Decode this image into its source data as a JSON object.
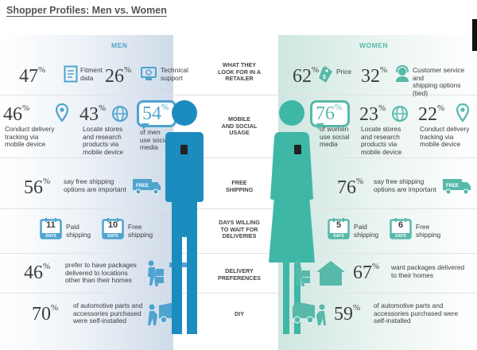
{
  "title": "Shopper Profiles: Men vs. Women",
  "headers": {
    "men": "MEN",
    "women": "WOMEN"
  },
  "center": {
    "retailer": "WHAT THEY\nLOOK FOR IN A\nRETAILER",
    "mobile": "MOBILE\nAND SOCIAL\nUSAGE",
    "shipping": "FREE\nSHIPPING",
    "days": "DAYS WILLING\nTO WAIT FOR\nDELIVERIES",
    "delivery": "DELIVERY\nPREFERENCES",
    "diy": "DIY"
  },
  "men": {
    "fitment": {
      "pct": "47",
      "label": "Fitment\ndata"
    },
    "technical": {
      "pct": "26",
      "label": "Technical\nsupport"
    },
    "tracking": {
      "pct": "46",
      "label": "Conduct delivery\ntracking via\nmobile device"
    },
    "locate": {
      "pct": "43",
      "label": "Locate stores\nand research\nproducts via\nmobile device"
    },
    "social": {
      "pct": "54",
      "label": "of men\nuse social\nmedia"
    },
    "shipping": {
      "pct": "56",
      "label": "say free shipping\noptions are important"
    },
    "days_paid": {
      "num": "11",
      "label": "Paid\nshipping"
    },
    "days_free": {
      "num": "10",
      "label": "Free\nshipping"
    },
    "delivery": {
      "pct": "46",
      "label": "prefer to have packages\ndelivered to locations\nother than their homes"
    },
    "diy": {
      "pct": "70",
      "label": "of automotive parts and\naccessories purchased\nwere self-installed"
    }
  },
  "women": {
    "price": {
      "pct": "62",
      "label": "Price"
    },
    "service": {
      "pct": "32",
      "label": "Customer service and\nshipping options (tied)"
    },
    "social": {
      "pct": "76",
      "label": "of women\nuse social\nmedia"
    },
    "locate": {
      "pct": "23",
      "label": "Locate stores\nand research\nproducts via\nmobile device"
    },
    "tracking": {
      "pct": "22",
      "label": "Conduct delivery\ntracking via\nmobile device"
    },
    "shipping": {
      "pct": "76",
      "label": "say free shipping\noptions are important"
    },
    "days_paid": {
      "num": "5",
      "label": "Paid\nshipping"
    },
    "days_free": {
      "num": "6",
      "label": "Free\nshipping"
    },
    "delivery": {
      "pct": "67",
      "label": "want packages delivered\nto their homes"
    },
    "diy": {
      "pct": "59",
      "label": "of automotive parts and\naccessories purchased were\nself-installed"
    }
  },
  "icons": {
    "calendar_days": "DAYS",
    "truck_text": "FREE",
    "price_tag": "$"
  },
  "colors": {
    "men": "#4fa3cf",
    "women": "#56b9a9",
    "text": "#3d3d3d"
  }
}
